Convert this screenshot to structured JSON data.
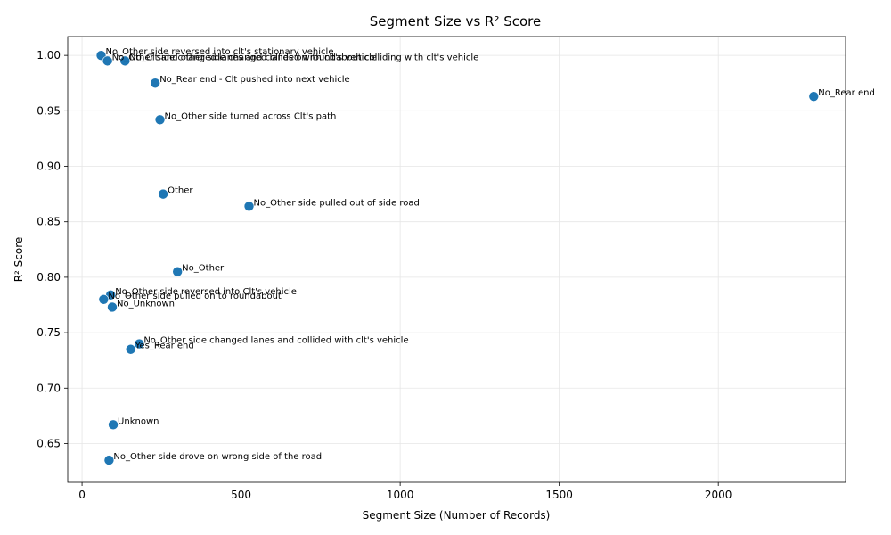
{
  "chart_data": {
    "type": "scatter",
    "title": "Segment Size vs R² Score",
    "xlabel": "Segment Size (Number of Records)",
    "ylabel": "R² Score",
    "xlim": [
      -45,
      2400
    ],
    "ylim": [
      0.615,
      1.017
    ],
    "xticks": [
      0,
      500,
      1000,
      1500,
      2000
    ],
    "yticks": [
      0.65,
      0.7,
      0.75,
      0.8,
      0.85,
      0.9,
      0.95,
      1.0
    ],
    "ytick_labels": [
      "0.65",
      "0.70",
      "0.75",
      "0.80",
      "0.85",
      "0.90",
      "0.95",
      "1.00"
    ],
    "grid": true,
    "marker_color": "#1f77b4",
    "points": [
      {
        "label": "No_Other side reversed into clt's stationary vehicle",
        "x": 60,
        "y": 1.0
      },
      {
        "label": "No_Other side changed lanes and collided with clt's vehicle",
        "x": 80,
        "y": 0.995
      },
      {
        "label": "No_Rear end - Clt pushed into next vehicle",
        "x": 230,
        "y": 0.975
      },
      {
        "label": "No_Rear end",
        "x": 2300,
        "y": 0.963
      },
      {
        "label": "No_Other side turned across Clt's path",
        "x": 245,
        "y": 0.942
      },
      {
        "label": "Other",
        "x": 255,
        "y": 0.875
      },
      {
        "label": "No_Other side pulled out of side road",
        "x": 525,
        "y": 0.864
      },
      {
        "label": "No_Other",
        "x": 300,
        "y": 0.805
      },
      {
        "label": "No_Other side reversed into Clt's vehicle",
        "x": 90,
        "y": 0.784
      },
      {
        "label": "No_Other side pulled on to roundabout",
        "x": 68,
        "y": 0.78
      },
      {
        "label": "No_Unknown",
        "x": 95,
        "y": 0.773
      },
      {
        "label": "No_Other side changed lanes and collided with clt's vehicle",
        "x": 180,
        "y": 0.74
      },
      {
        "label": "Yes_Rear end",
        "x": 153,
        "y": 0.735
      },
      {
        "label": "Unknown",
        "x": 98,
        "y": 0.667
      },
      {
        "label": "No_Other side drove on wrong side of the road",
        "x": 85,
        "y": 0.635
      },
      {
        "label": "No_Clt and other side changed lanes on roundabout colliding with clt's vehicle",
        "x": 135,
        "y": 0.995
      }
    ]
  }
}
